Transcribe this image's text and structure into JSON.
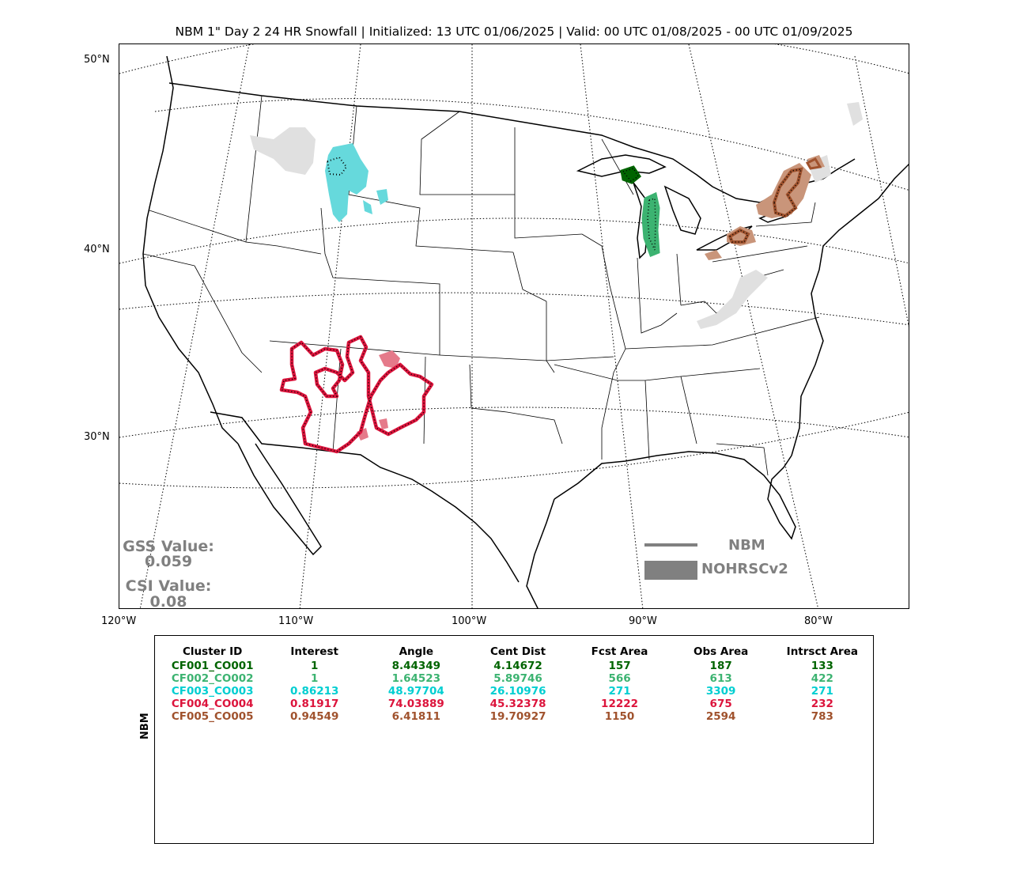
{
  "title": "NBM 1\" Day 2 24 HR Snowfall | Initialized: 13 UTC 01/06/2025 | Valid: 00 UTC 01/08/2025 - 00 UTC 01/09/2025",
  "map": {
    "lat_labels": [
      "50°N",
      "40°N",
      "30°N"
    ],
    "lon_labels": [
      "120°W",
      "110°W",
      "100°W",
      "90°W",
      "80°W"
    ],
    "scores": {
      "gss_label": "GSS Value:",
      "gss_value": "0.059",
      "csi_label": "CSI Value:",
      "csi_value": "0.08"
    },
    "legend": {
      "line_label": "NBM",
      "patch_label": "NOHRSCv2",
      "color": "#808080"
    },
    "colors": {
      "obs_unmatched": "#e0e0e0",
      "cluster1": "#006400",
      "cluster2": "#3cb371",
      "cluster3": "#00ced1",
      "cluster4": "#dc143c",
      "cluster5": "#a0522d"
    }
  },
  "table": {
    "side_label": "NBM",
    "headers": [
      "Cluster ID",
      "Interest",
      "Angle",
      "Cent Dist",
      "Fcst Area",
      "Obs Area",
      "Intrsct Area"
    ],
    "rows": [
      {
        "color": "#006400",
        "cells": [
          "CF001_CO001",
          "1",
          "8.44349",
          "4.14672",
          "157",
          "187",
          "133"
        ]
      },
      {
        "color": "#3cb371",
        "cells": [
          "CF002_CO002",
          "1",
          "1.64523",
          "5.89746",
          "566",
          "613",
          "422"
        ]
      },
      {
        "color": "#00ced1",
        "cells": [
          "CF003_CO003",
          "0.86213",
          "48.97704",
          "26.10976",
          "271",
          "3309",
          "271"
        ]
      },
      {
        "color": "#dc143c",
        "cells": [
          "CF004_CO004",
          "0.81917",
          "74.03889",
          "45.32378",
          "12222",
          "675",
          "232"
        ]
      },
      {
        "color": "#a0522d",
        "cells": [
          "CF005_CO005",
          "0.94549",
          "6.41811",
          "19.70927",
          "1150",
          "2594",
          "783"
        ]
      }
    ]
  }
}
